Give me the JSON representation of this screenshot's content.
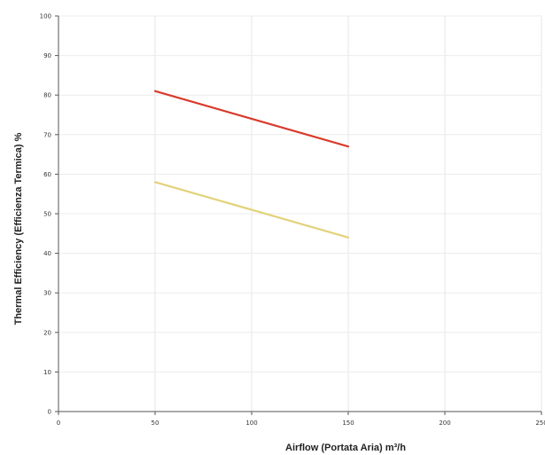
{
  "chart_data": {
    "type": "line",
    "xlabel": "Airflow (Portata Aria) m³/h",
    "ylabel": "Thermal Efficiency (Efficienza Termica) %",
    "xlim": [
      0,
      250
    ],
    "ylim": [
      0,
      100
    ],
    "x_ticks": [
      0,
      50,
      100,
      150,
      200,
      250
    ],
    "y_ticks": [
      0,
      10,
      20,
      30,
      40,
      50,
      60,
      70,
      80,
      90,
      100
    ],
    "grid": true,
    "legend": "none",
    "series": [
      {
        "color": "#d93a2b",
        "x": [
          50,
          150
        ],
        "y": [
          81,
          67
        ]
      },
      {
        "color": "#e2d27a",
        "x": [
          50,
          150
        ],
        "y": [
          58,
          44
        ]
      }
    ]
  }
}
